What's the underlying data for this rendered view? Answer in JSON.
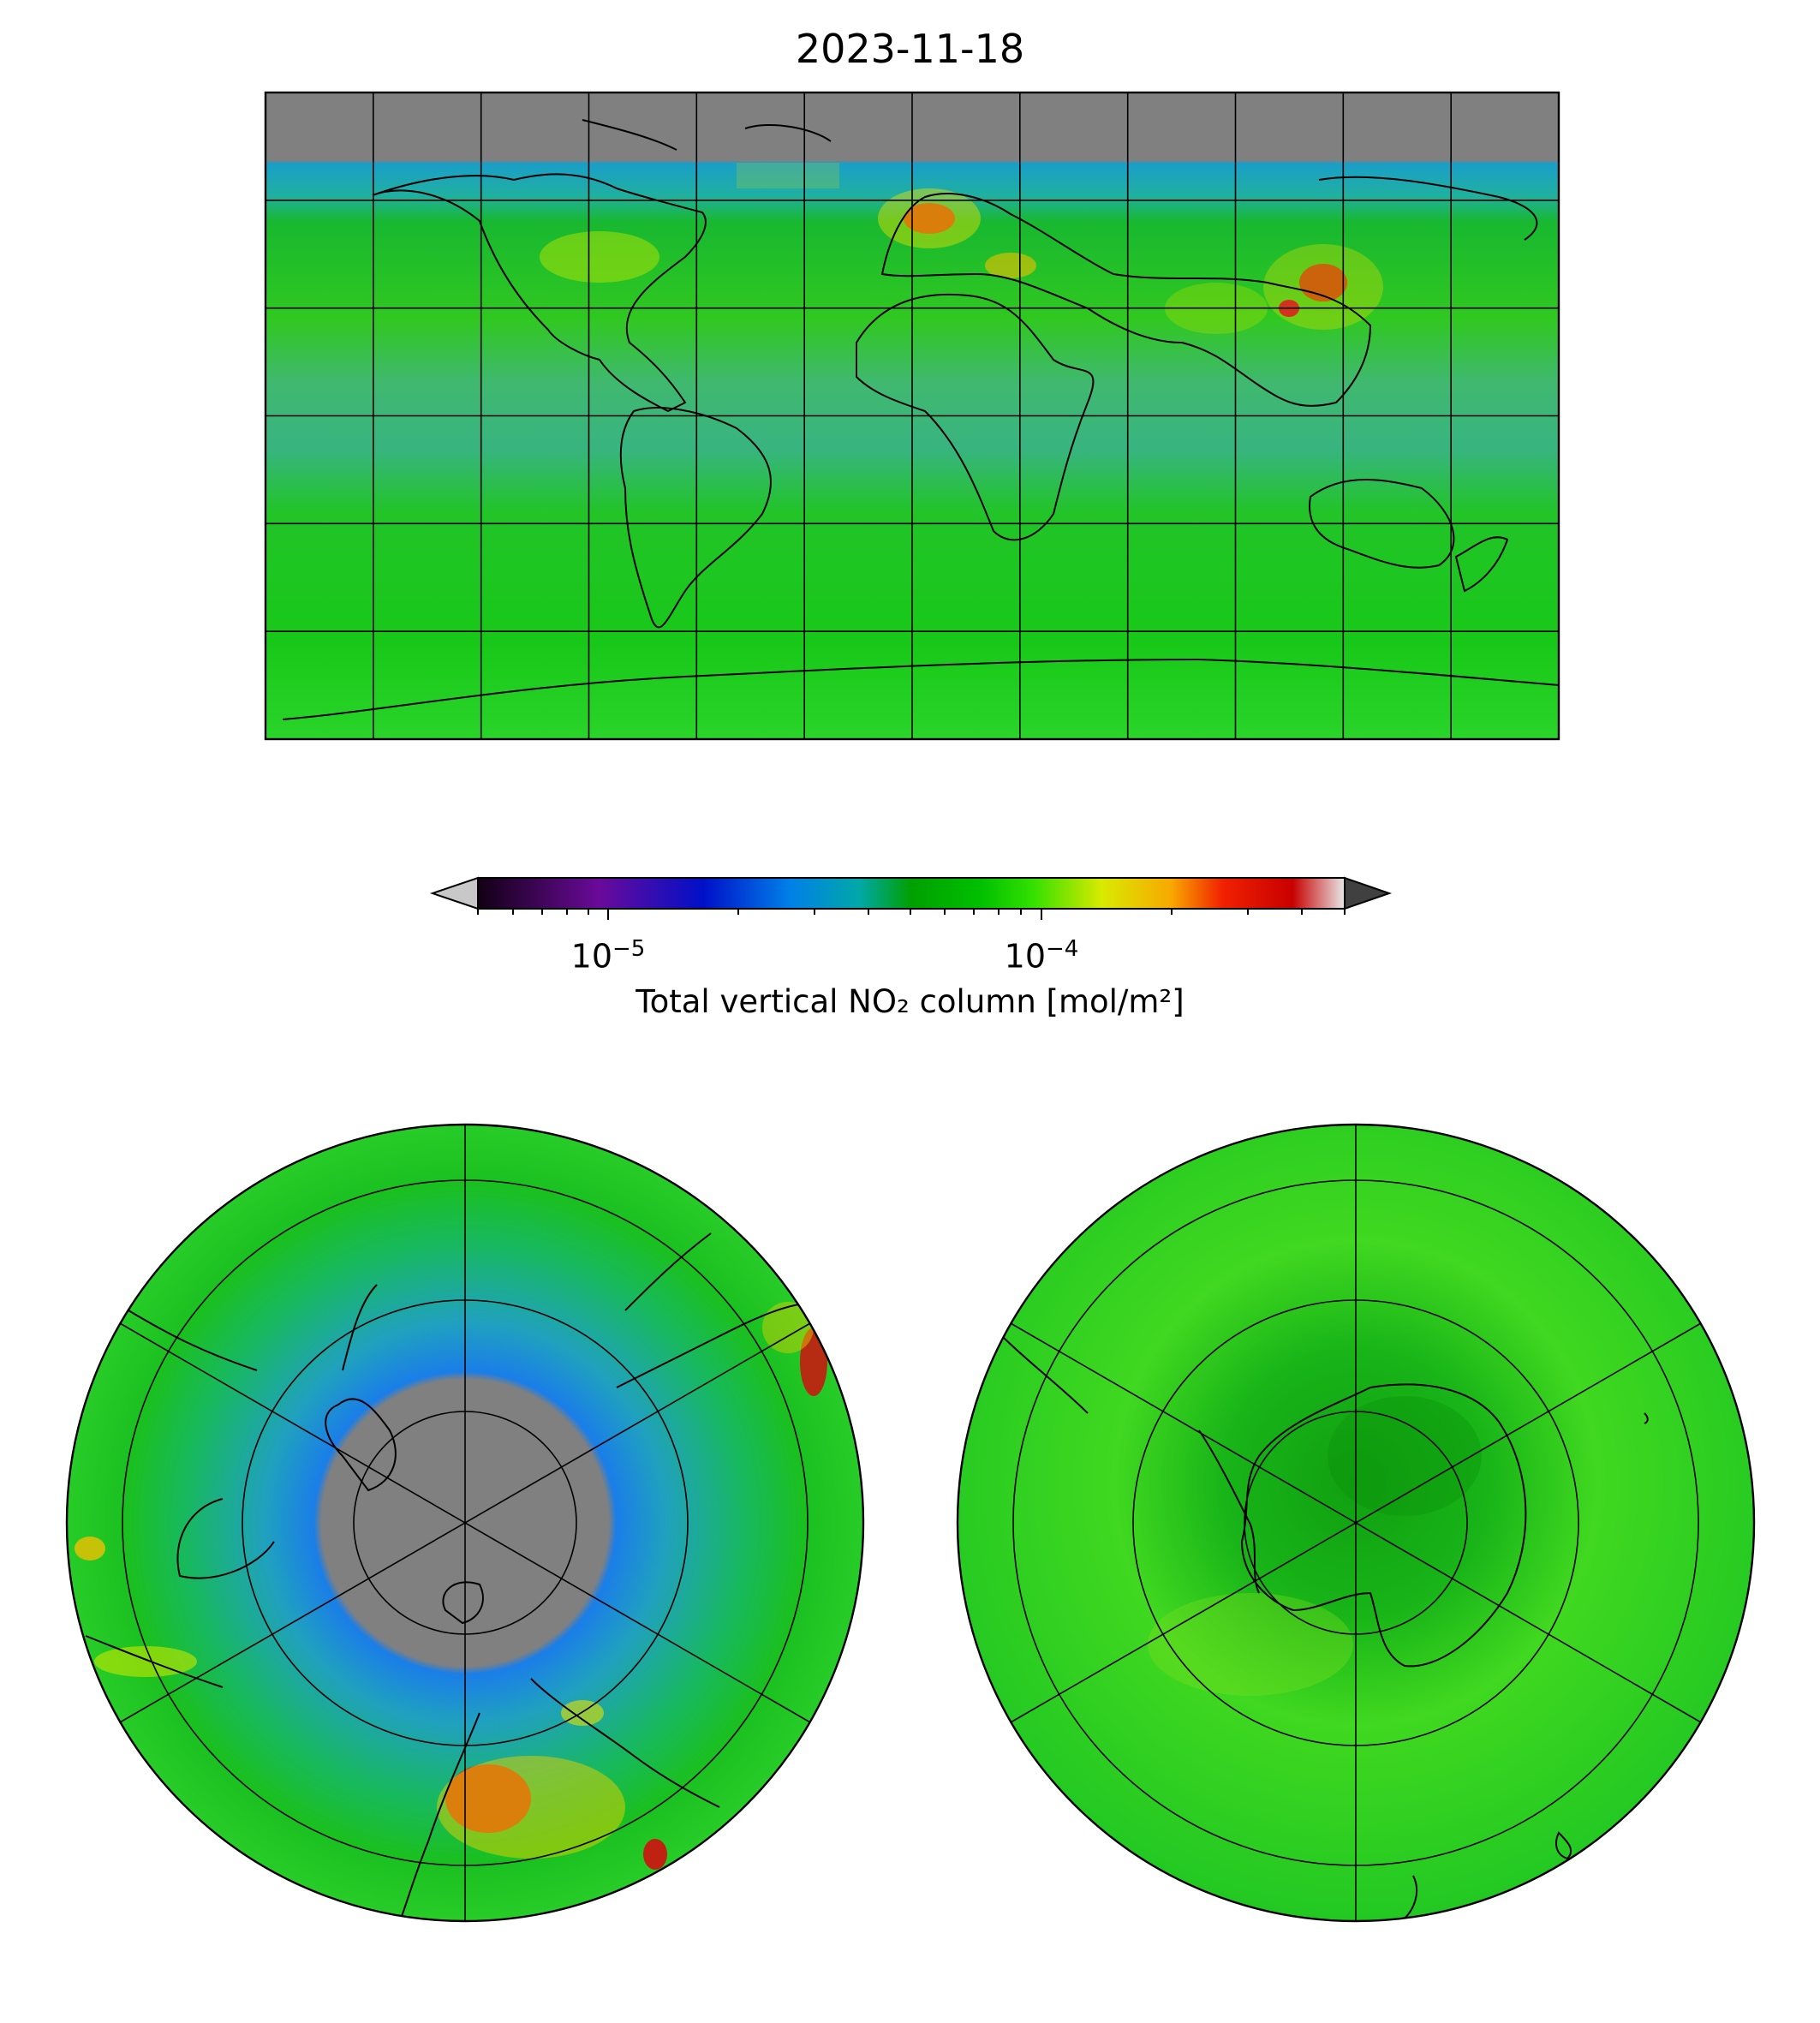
{
  "title": "2023-11-18",
  "colorbar": {
    "label": "Total vertical NO₂ column [mol/m²]",
    "scale": "log",
    "range": [
      5e-06,
      0.0005
    ],
    "extend": "both",
    "tick_labels": [
      {
        "base": "10",
        "exponent": "−5",
        "value": 1e-05
      },
      {
        "base": "10",
        "exponent": "−4",
        "value": 0.0001
      }
    ],
    "colors": [
      "#120014",
      "#6a0a9a",
      "#0010c8",
      "#0080e8",
      "#00a8a8",
      "#00a000",
      "#00c000",
      "#33e000",
      "#d8ea00",
      "#f8a800",
      "#f02000",
      "#c80000",
      "#e8e8e8"
    ],
    "under_color": "#c8c8c8",
    "over_color": "#404040"
  },
  "maps": [
    {
      "name": "global-plate-carree",
      "no_data_color": "#808080",
      "background_color": "#18c818"
    },
    {
      "name": "north-polar-stereographic",
      "no_data_color": "#808080"
    },
    {
      "name": "south-polar-stereographic"
    }
  ]
}
